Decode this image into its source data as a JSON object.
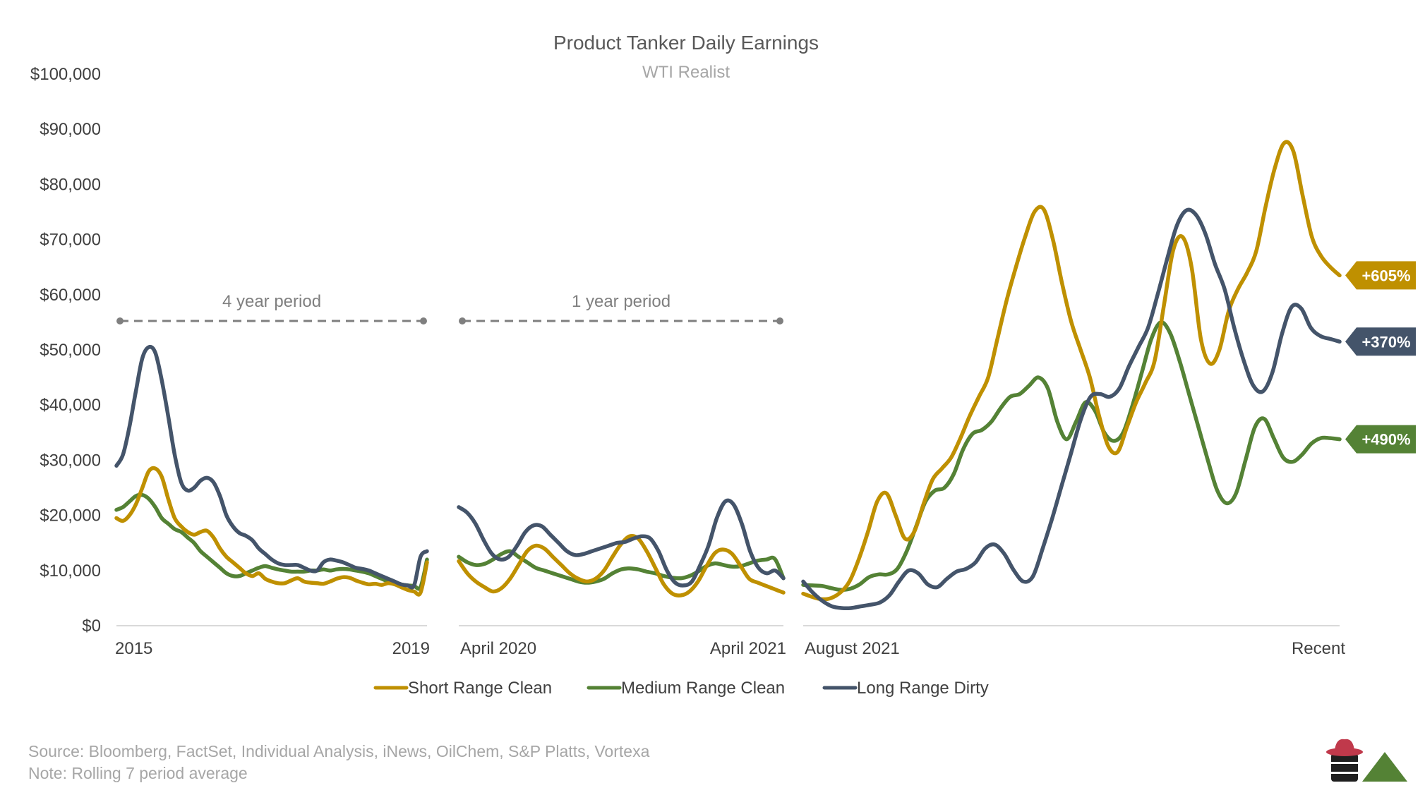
{
  "chart_data": {
    "type": "line",
    "title": "Product Tanker Daily Earnings",
    "subtitle": "WTI Realist",
    "ylim": [
      0,
      100000
    ],
    "yticks": [
      {
        "value": 0,
        "label": "$0"
      },
      {
        "value": 10000,
        "label": "$10,000"
      },
      {
        "value": 20000,
        "label": "$20,000"
      },
      {
        "value": 30000,
        "label": "$30,000"
      },
      {
        "value": 40000,
        "label": "$40,000"
      },
      {
        "value": 50000,
        "label": "$50,000"
      },
      {
        "value": 60000,
        "label": "$60,000"
      },
      {
        "value": 70000,
        "label": "$70,000"
      },
      {
        "value": 80000,
        "label": "$80,000"
      },
      {
        "value": 90000,
        "label": "$90,000"
      },
      {
        "value": 100000,
        "label": "$100,000"
      }
    ],
    "grid": false,
    "panels": [
      {
        "name": "4-year",
        "start_label": "2015",
        "end_label": "2019",
        "period_label": "4 year period"
      },
      {
        "name": "1-year",
        "start_label": "April 2020",
        "end_label": "April 2021",
        "period_label": "1 year period"
      },
      {
        "name": "recent",
        "start_label": "August 2021",
        "end_label": "Recent",
        "period_label": ""
      }
    ],
    "series": [
      {
        "name": "Short Range Clean",
        "color": "#bf9000",
        "panels": [
          [
            19500,
            19000,
            20000,
            22000,
            25000,
            28000,
            28500,
            27000,
            23000,
            19500,
            18000,
            17000,
            16500,
            17000,
            17200,
            16000,
            14000,
            12500,
            11500,
            10500,
            9500,
            9000,
            9500,
            8500,
            8000,
            7700,
            7700,
            8200,
            8600,
            8000,
            7800,
            7700,
            7600,
            8000,
            8500,
            8800,
            8700,
            8200,
            7800,
            7500,
            7600,
            7400,
            7700,
            7500,
            7000,
            6500,
            6200,
            6000,
            11500
          ],
          [
            11700,
            9500,
            8000,
            7000,
            6200,
            6800,
            8500,
            11000,
            13500,
            14500,
            14000,
            12500,
            11000,
            9500,
            8500,
            8000,
            8500,
            10000,
            12500,
            14800,
            16200,
            15800,
            13500,
            10500,
            7500,
            5800,
            5500,
            6200,
            8000,
            10800,
            13200,
            13800,
            13000,
            10800,
            8500,
            7800,
            7200,
            6600,
            6000
          ],
          [
            5800,
            5200,
            4800,
            5000,
            6000,
            8000,
            12000,
            17000,
            22500,
            24000,
            20000,
            15800,
            17000,
            22000,
            26500,
            28500,
            30500,
            34000,
            38000,
            41500,
            45000,
            52000,
            59000,
            65000,
            70500,
            75000,
            75500,
            70000,
            62000,
            55000,
            50000,
            45000,
            38000,
            32500,
            31500,
            36000,
            40500,
            44000,
            48000,
            58000,
            68000,
            70500,
            65000,
            52000,
            47500,
            50000,
            57000,
            61000,
            64000,
            68000,
            76000,
            83000,
            87500,
            86000,
            78000,
            70500,
            67000,
            65000,
            63500
          ]
        ],
        "end_label": "+605%"
      },
      {
        "name": "Medium Range Clean",
        "color": "#548235",
        "panels": [
          [
            21000,
            21500,
            22500,
            23500,
            23700,
            23000,
            21500,
            19500,
            18500,
            17500,
            17000,
            16000,
            15000,
            13500,
            12500,
            11500,
            10500,
            9500,
            9000,
            9000,
            9500,
            10000,
            10500,
            10800,
            10500,
            10200,
            10000,
            9800,
            9800,
            9800,
            10000,
            10000,
            10200,
            10000,
            10200,
            10300,
            10200,
            10000,
            9800,
            9500,
            9000,
            8500,
            8000,
            7800,
            7500,
            7300,
            7200,
            7000,
            12000
          ],
          [
            12500,
            11500,
            11000,
            11200,
            12000,
            13000,
            13500,
            12500,
            11500,
            10500,
            10000,
            9500,
            9000,
            8500,
            8000,
            7800,
            8000,
            8500,
            9500,
            10200,
            10400,
            10200,
            9800,
            9500,
            9000,
            8700,
            8600,
            9000,
            9800,
            10800,
            11300,
            11000,
            10700,
            10800,
            11300,
            11800,
            12000,
            12100,
            8600
          ],
          [
            7400,
            7300,
            7200,
            6800,
            6500,
            6700,
            7500,
            8800,
            9300,
            9300,
            10300,
            13500,
            18000,
            22500,
            24500,
            25000,
            27500,
            32000,
            34800,
            35500,
            37000,
            39500,
            41500,
            42000,
            43500,
            45000,
            43000,
            37000,
            33800,
            37000,
            40500,
            39000,
            35000,
            33500,
            35000,
            40000,
            46000,
            52000,
            55000,
            53000,
            48000,
            42000,
            36000,
            30000,
            24500,
            22200,
            24000,
            30000,
            36000,
            37500,
            34000,
            30500,
            29700,
            31000,
            33000,
            34000,
            34000,
            33800
          ]
        ]
      },
      {
        "name": "Long Range Dirty",
        "color": "#44546a",
        "panels": [
          [
            29000,
            31000,
            36000,
            42500,
            48500,
            50500,
            49500,
            44500,
            38000,
            31000,
            26000,
            24500,
            25000,
            26300,
            26800,
            26000,
            23500,
            20000,
            18000,
            16800,
            16300,
            15500,
            14000,
            13000,
            12000,
            11300,
            11000,
            11000,
            11000,
            10500,
            10000,
            10000,
            11500,
            12000,
            11800,
            11500,
            11000,
            10500,
            10300,
            10000,
            9500,
            9000,
            8500,
            8000,
            7500,
            7300,
            7300,
            12500,
            13500
          ],
          [
            21500,
            20500,
            18500,
            15500,
            13000,
            12000,
            12500,
            14500,
            17000,
            18200,
            18000,
            16500,
            15000,
            13500,
            12800,
            13000,
            13500,
            14000,
            14500,
            15000,
            15200,
            15800,
            16200,
            15800,
            13500,
            10000,
            7800,
            7300,
            8000,
            11000,
            14500,
            19500,
            22500,
            22000,
            18500,
            13500,
            10500,
            9500,
            10000,
            8600
          ],
          [
            8000,
            6000,
            4500,
            3500,
            3200,
            3200,
            3500,
            3800,
            4200,
            5500,
            8000,
            10000,
            9500,
            7500,
            7000,
            8500,
            9800,
            10300,
            11500,
            14000,
            14700,
            13000,
            10000,
            8000,
            9000,
            14000,
            19500,
            25500,
            31500,
            37500,
            41500,
            42000,
            41500,
            43000,
            47000,
            50500,
            54000,
            60000,
            66500,
            72500,
            75300,
            74500,
            71000,
            65500,
            61000,
            54000,
            48000,
            43500,
            42500,
            46000,
            53000,
            57800,
            57500,
            54000,
            52500,
            52000,
            51500
          ]
        ],
        "end_label": "+370%"
      }
    ],
    "annotations": [
      {
        "type": "end-tag",
        "label": "+605%",
        "series": "Short Range Clean",
        "value": 63500,
        "color": "#bf9000"
      },
      {
        "type": "end-tag",
        "label": "+370%",
        "series": "Long Range Dirty",
        "value": 51500,
        "color": "#44546a"
      },
      {
        "type": "end-tag",
        "label": "+490%",
        "series": "Medium Range Clean",
        "value": 33800,
        "color": "#548235"
      }
    ],
    "legend": {
      "position": "bottom",
      "items": [
        "Short Range Clean",
        "Medium Range Clean",
        "Long Range Dirty"
      ]
    },
    "footer": {
      "source": "Source: Bloomberg, FactSet, Individual Analysis, iNews, OilChem, S&P Platts, Vortexa",
      "note": "Note: Rolling 7 period average"
    },
    "logo": {
      "colors": {
        "hat": "#c0394b",
        "barrel": "#1f1f1f",
        "triangle": "#548235"
      }
    }
  }
}
